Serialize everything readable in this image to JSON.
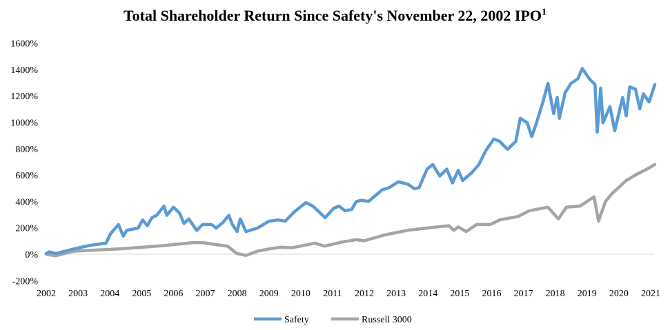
{
  "chart_data": {
    "type": "line",
    "title": "Total Shareholder Return Since Safety's November 22, 2002 IPO",
    "title_superscript": "1",
    "xlabel": "",
    "ylabel": "",
    "ylim": [
      -200,
      1600
    ],
    "xlim": [
      2002,
      2021
    ],
    "y_ticks": [
      "-200%",
      "0%",
      "200%",
      "400%",
      "600%",
      "800%",
      "1000%",
      "1200%",
      "1400%",
      "1600%"
    ],
    "x_ticks": [
      "2002",
      "2003",
      "2004",
      "2005",
      "2006",
      "2007",
      "2008",
      "2009",
      "2010",
      "2011",
      "2012",
      "2013",
      "2014",
      "2015",
      "2016",
      "2017",
      "2018",
      "2019",
      "2020",
      "2021"
    ],
    "grid": false,
    "zero_line": true,
    "legend_position": "bottom",
    "series": [
      {
        "name": "Safety",
        "color": "#5b9bd5",
        "x": [
          2002.0,
          2002.1,
          2002.3,
          2002.87,
          2003.37,
          2003.88,
          2004.02,
          2004.27,
          2004.42,
          2004.53,
          2004.89,
          2005.03,
          2005.18,
          2005.32,
          2005.47,
          2005.7,
          2005.79,
          2006.0,
          2006.19,
          2006.33,
          2006.48,
          2006.73,
          2006.91,
          2007.2,
          2007.34,
          2007.56,
          2007.74,
          2007.85,
          2008.0,
          2008.1,
          2008.28,
          2008.64,
          2009.0,
          2009.29,
          2009.51,
          2009.8,
          2010.16,
          2010.38,
          2010.77,
          2011.03,
          2011.2,
          2011.39,
          2011.6,
          2011.75,
          2011.91,
          2012.13,
          2012.56,
          2012.78,
          2013.07,
          2013.36,
          2013.58,
          2013.72,
          2013.97,
          2014.15,
          2014.37,
          2014.59,
          2014.77,
          2014.95,
          2015.09,
          2015.38,
          2015.6,
          2015.82,
          2016.07,
          2016.25,
          2016.5,
          2016.76,
          2016.9,
          2017.12,
          2017.26,
          2017.41,
          2017.59,
          2017.77,
          2017.95,
          2018.06,
          2018.13,
          2018.31,
          2018.49,
          2018.71,
          2018.85,
          2019.07,
          2019.25,
          2019.32,
          2019.43,
          2019.5,
          2019.72,
          2019.87,
          2020.12,
          2020.23,
          2020.34,
          2020.52,
          2020.66,
          2020.77,
          2020.95,
          2021.13
        ],
        "y": [
          5,
          18,
          5,
          40,
          67,
          84,
          154,
          225,
          137,
          180,
          198,
          260,
          216,
          277,
          295,
          365,
          295,
          356,
          312,
          233,
          268,
          180,
          225,
          225,
          198,
          242,
          295,
          225,
          172,
          268,
          172,
          198,
          250,
          260,
          250,
          321,
          391,
          365,
          277,
          347,
          365,
          330,
          339,
          400,
          409,
          400,
          488,
          505,
          549,
          531,
          496,
          505,
          645,
          680,
          593,
          645,
          540,
          637,
          558,
          619,
          680,
          786,
          873,
          856,
          795,
          856,
          1031,
          996,
          891,
          996,
          1137,
          1294,
          1066,
          1189,
          1031,
          1224,
          1294,
          1330,
          1408,
          1330,
          1286,
          926,
          1259,
          996,
          1119,
          935,
          1189,
          1049,
          1268,
          1251,
          1102,
          1216,
          1154,
          1286
        ]
      },
      {
        "name": "Russell 3000",
        "color": "#a5a5a5",
        "x": [
          2002.0,
          2002.29,
          2002.87,
          2003.59,
          2004.31,
          2005.03,
          2005.75,
          2006.62,
          2006.91,
          2007.42,
          2007.7,
          2007.99,
          2008.28,
          2008.64,
          2009.0,
          2009.36,
          2009.73,
          2010.45,
          2010.74,
          2011.31,
          2011.75,
          2011.99,
          2012.64,
          2013.36,
          2013.94,
          2014.66,
          2014.81,
          2014.95,
          2015.2,
          2015.53,
          2015.96,
          2016.25,
          2016.83,
          2017.19,
          2017.77,
          2018.1,
          2018.35,
          2018.78,
          2019.22,
          2019.36,
          2019.58,
          2019.79,
          2020.23,
          2020.59,
          2020.88,
          2021.13
        ],
        "y": [
          0,
          -12,
          23,
          32,
          40,
          53,
          67,
          88,
          88,
          70,
          61,
          5,
          -9,
          23,
          40,
          53,
          49,
          84,
          61,
          93,
          110,
          102,
          146,
          181,
          198,
          216,
          181,
          207,
          172,
          225,
          225,
          260,
          286,
          330,
          356,
          268,
          356,
          365,
          435,
          251,
          400,
          461,
          558,
          610,
          645,
          680
        ]
      }
    ]
  }
}
